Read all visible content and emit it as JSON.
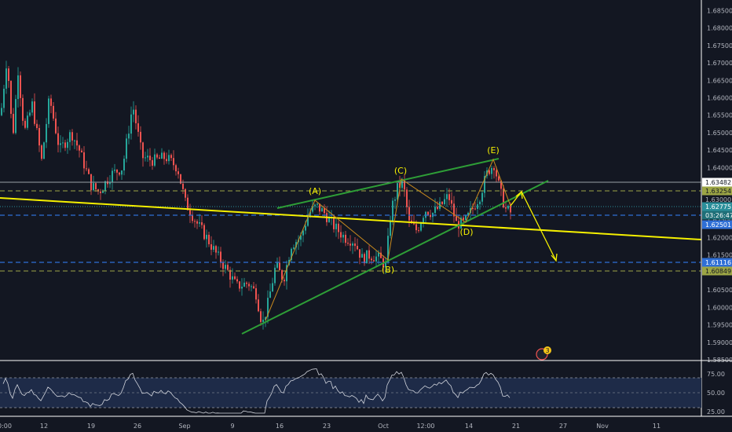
{
  "colors": {
    "background": "#131722",
    "up": "#26a69a",
    "down": "#ef5350",
    "trend_yellow": "#f5f000",
    "channel_green": "#2e9e37",
    "wave_orange": "#c98a1e",
    "level_gray": "#9aa0a6",
    "dash_green": "#9ca545",
    "dash_blue": "#2f6fd6",
    "current_line": "#2b8f9b",
    "rsi_line": "#d1d4dc",
    "rsi_band": "#1e2b48"
  },
  "price_axis": {
    "labels": [
      "1.68500",
      "1.68000",
      "1.67500",
      "1.67000",
      "1.66500",
      "1.66000",
      "1.65500",
      "1.65000",
      "1.64500",
      "1.64000",
      "1.63500",
      "1.63000",
      "1.62500",
      "1.62000",
      "1.61500",
      "1.61000",
      "1.60500",
      "1.60000",
      "1.59500",
      "1.59000",
      "1.58500"
    ],
    "badges": [
      {
        "text": "1.63482",
        "style": "white"
      },
      {
        "text": "1.63254",
        "style": "olive"
      },
      {
        "text": "1.63000",
        "style": "plain"
      },
      {
        "text": "1.62775",
        "style": "teal"
      },
      {
        "text": "03:26:47",
        "style": "teal-dark"
      },
      {
        "text": "1.62501",
        "style": "blue"
      },
      {
        "text": "1.61116",
        "style": "blue"
      },
      {
        "text": "1.60849",
        "style": "olive"
      }
    ]
  },
  "time_axis": {
    "labels": [
      "0:00",
      "12",
      "19",
      "26",
      "Sep",
      "9",
      "16",
      "23",
      "Oct",
      "12:00",
      "14",
      "21",
      "27",
      "Nov",
      "11"
    ]
  },
  "rsi_axis": {
    "labels": [
      "75.00",
      "50.00",
      "25.00"
    ]
  },
  "wave_labels": [
    "(A)",
    "(B)",
    "(C)",
    "(D)",
    "(E)"
  ],
  "indicator_badge": "3",
  "chart_data": {
    "type": "candlestick",
    "price_range": [
      1.585,
      1.688
    ],
    "levels": {
      "white": 1.63482,
      "olive_upper": 1.63254,
      "current": 1.62775,
      "blue_upper": 1.62501,
      "blue_lower": 1.61116,
      "olive_lower": 1.60849
    },
    "anchors": [
      [
        0,
        1.655
      ],
      [
        8,
        1.672
      ],
      [
        15,
        1.648
      ],
      [
        22,
        1.668
      ],
      [
        30,
        1.65
      ],
      [
        40,
        1.658
      ],
      [
        52,
        1.642
      ],
      [
        62,
        1.66
      ],
      [
        75,
        1.645
      ],
      [
        90,
        1.65
      ],
      [
        100,
        1.645
      ],
      [
        115,
        1.635
      ],
      [
        125,
        1.633
      ],
      [
        140,
        1.638
      ],
      [
        155,
        1.64
      ],
      [
        168,
        1.658
      ],
      [
        180,
        1.643
      ],
      [
        195,
        1.642
      ],
      [
        210,
        1.643
      ],
      [
        225,
        1.64
      ],
      [
        235,
        1.63
      ],
      [
        250,
        1.624
      ],
      [
        262,
        1.62
      ],
      [
        275,
        1.615
      ],
      [
        290,
        1.61
      ],
      [
        300,
        1.606
      ],
      [
        315,
        1.607
      ],
      [
        325,
        1.604
      ],
      [
        333,
        1.595
      ],
      [
        340,
        1.601
      ],
      [
        350,
        1.612
      ],
      [
        360,
        1.608
      ],
      [
        370,
        1.618
      ],
      [
        382,
        1.62
      ],
      [
        392,
        1.627
      ],
      [
        402,
        1.629
      ],
      [
        412,
        1.627
      ],
      [
        425,
        1.623
      ],
      [
        438,
        1.62
      ],
      [
        450,
        1.619
      ],
      [
        460,
        1.614
      ],
      [
        470,
        1.615
      ],
      [
        482,
        1.614
      ],
      [
        490,
        1.612
      ],
      [
        497,
        1.628
      ],
      [
        505,
        1.634
      ],
      [
        512,
        1.636
      ],
      [
        520,
        1.624
      ],
      [
        530,
        1.622
      ],
      [
        540,
        1.628
      ],
      [
        550,
        1.627
      ],
      [
        560,
        1.629
      ],
      [
        570,
        1.632
      ],
      [
        580,
        1.624
      ],
      [
        590,
        1.624
      ],
      [
        600,
        1.628
      ],
      [
        610,
        1.632
      ],
      [
        620,
        1.639
      ],
      [
        628,
        1.641
      ],
      [
        636,
        1.633
      ],
      [
        643,
        1.628
      ],
      [
        650,
        1.627
      ]
    ],
    "rsi_range": [
      20,
      85
    ]
  }
}
